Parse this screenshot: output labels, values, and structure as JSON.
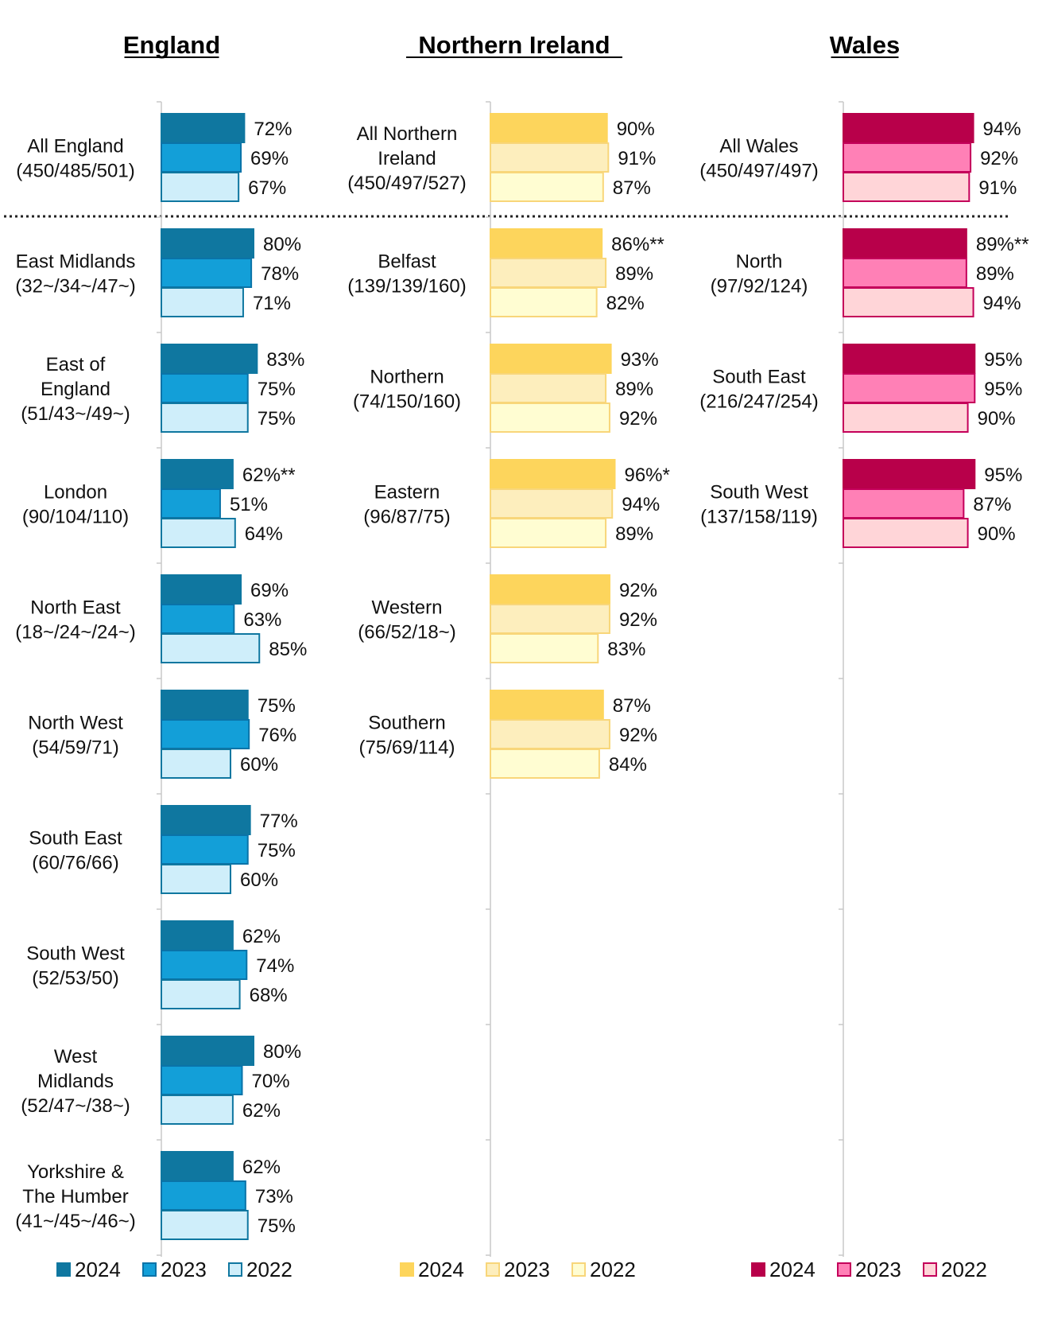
{
  "chart_data": [
    {
      "type": "bar",
      "orientation": "horizontal",
      "title": "England",
      "colors": {
        "2024": "#0f77a0",
        "2023": "#139fd8",
        "2022": "#cfeefa"
      },
      "stroke_colors": {
        "2024": "#0f77a0",
        "2023": "#0a73a8",
        "2022": "#0f77a0"
      },
      "legend": [
        "2024",
        "2023",
        "2022"
      ],
      "rows": [
        {
          "label": [
            "All England",
            "(450/485/501)"
          ],
          "values": [
            72,
            69,
            67
          ],
          "value_labels": [
            "72%",
            "69%",
            "67%"
          ]
        },
        {
          "label": [
            "East Midlands",
            "(32~/34~/47~)"
          ],
          "values": [
            80,
            78,
            71
          ],
          "value_labels": [
            "80%",
            "78%",
            "71%"
          ]
        },
        {
          "label": [
            "East of",
            "England",
            "(51/43~/49~)"
          ],
          "values": [
            83,
            75,
            75
          ],
          "value_labels": [
            "83%",
            "75%",
            "75%"
          ]
        },
        {
          "label": [
            "London",
            "(90/104/110)"
          ],
          "values": [
            62,
            51,
            64
          ],
          "value_labels": [
            "62%**",
            "51%",
            "64%"
          ]
        },
        {
          "label": [
            "North East",
            "(18~/24~/24~)"
          ],
          "values": [
            69,
            63,
            85
          ],
          "value_labels": [
            "69%",
            "63%",
            "85%"
          ]
        },
        {
          "label": [
            "North West",
            "(54/59/71)"
          ],
          "values": [
            75,
            76,
            60
          ],
          "value_labels": [
            "75%",
            "76%",
            "60%"
          ]
        },
        {
          "label": [
            "South East",
            "(60/76/66)"
          ],
          "values": [
            77,
            75,
            60
          ],
          "value_labels": [
            "77%",
            "75%",
            "60%"
          ]
        },
        {
          "label": [
            "South West",
            "(52/53/50)"
          ],
          "values": [
            62,
            74,
            68
          ],
          "value_labels": [
            "62%",
            "74%",
            "68%"
          ]
        },
        {
          "label": [
            "West",
            "Midlands",
            "(52/47~/38~)"
          ],
          "values": [
            80,
            70,
            62
          ],
          "value_labels": [
            "80%",
            "70%",
            "62%"
          ]
        },
        {
          "label": [
            "Yorkshire &",
            "The Humber",
            "(41~/45~/46~)"
          ],
          "values": [
            62,
            73,
            75
          ],
          "value_labels": [
            "62%",
            "73%",
            "75%"
          ]
        }
      ]
    },
    {
      "type": "bar",
      "orientation": "horizontal",
      "title": "Northern Ireland",
      "colors": {
        "2024": "#fdd55c",
        "2023": "#fdeebd",
        "2022": "#fffdd2"
      },
      "stroke_colors": {
        "2024": "#fdd55c",
        "2023": "#f8d67a",
        "2022": "#f8d67a"
      },
      "legend": [
        "2024",
        "2023",
        "2022"
      ],
      "rows": [
        {
          "label": [
            "All Northern",
            "Ireland",
            "(450/497/527)"
          ],
          "values": [
            90,
            91,
            87
          ],
          "value_labels": [
            "90%",
            "91%",
            "87%"
          ]
        },
        {
          "label": [
            "Belfast",
            "(139/139/160)"
          ],
          "values": [
            86,
            89,
            82
          ],
          "value_labels": [
            "86%**",
            "89%",
            "82%"
          ]
        },
        {
          "label": [
            "Northern",
            "(74/150/160)"
          ],
          "values": [
            93,
            89,
            92
          ],
          "value_labels": [
            "93%",
            "89%",
            "92%"
          ]
        },
        {
          "label": [
            "Eastern",
            "(96/87/75)"
          ],
          "values": [
            96,
            94,
            89
          ],
          "value_labels": [
            "96%*",
            "94%",
            "89%"
          ]
        },
        {
          "label": [
            "Western",
            "(66/52/18~)"
          ],
          "values": [
            92,
            92,
            83
          ],
          "value_labels": [
            "92%",
            "92%",
            "83%"
          ]
        },
        {
          "label": [
            "Southern",
            "(75/69/114)"
          ],
          "values": [
            87,
            92,
            84
          ],
          "value_labels": [
            "87%",
            "92%",
            "84%"
          ]
        }
      ]
    },
    {
      "type": "bar",
      "orientation": "horizontal",
      "title": "Wales",
      "colors": {
        "2024": "#b8004a",
        "2023": "#ff80b6",
        "2022": "#ffd5d8"
      },
      "stroke_colors": {
        "2024": "#b8004a",
        "2023": "#c4005a",
        "2022": "#c4005a"
      },
      "legend": [
        "2024",
        "2023",
        "2022"
      ],
      "rows": [
        {
          "label": [
            "All Wales",
            "(450/497/497)"
          ],
          "values": [
            94,
            92,
            91
          ],
          "value_labels": [
            "94%",
            "92%",
            "91%"
          ]
        },
        {
          "label": [
            "North",
            "(97/92/124)"
          ],
          "values": [
            89,
            89,
            94
          ],
          "value_labels": [
            "89%**",
            "89%",
            "94%"
          ]
        },
        {
          "label": [
            "South East",
            "(216/247/254)"
          ],
          "values": [
            95,
            95,
            90
          ],
          "value_labels": [
            "95%",
            "95%",
            "90%"
          ]
        },
        {
          "label": [
            "South West",
            "(137/158/119)"
          ],
          "values": [
            95,
            87,
            90
          ],
          "value_labels": [
            "95%",
            "87%",
            "90%"
          ]
        }
      ]
    }
  ]
}
